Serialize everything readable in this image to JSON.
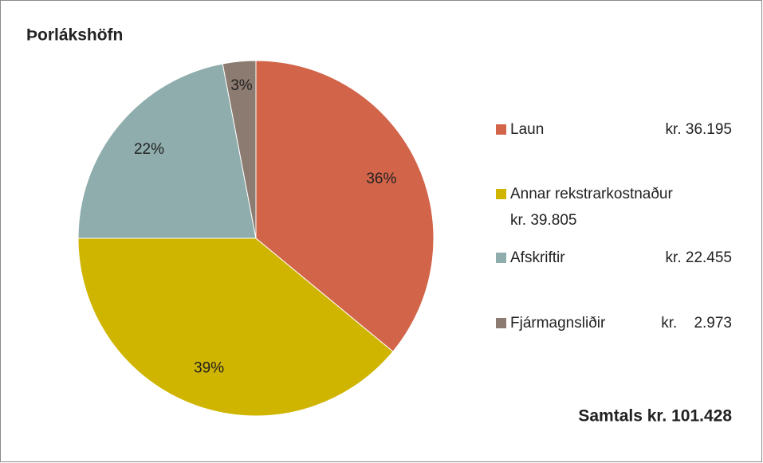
{
  "chart_data": {
    "type": "pie",
    "title": "Þorlákshöfn",
    "categories": [
      "Laun",
      "Annar rekstrarkostnaður",
      "Afskriftir",
      "Fjármagnsliðir"
    ],
    "values": [
      36,
      39,
      22,
      3
    ],
    "value_labels": [
      "36%",
      "39%",
      "22%",
      "3%"
    ],
    "amount_labels": [
      "kr. 36.195",
      "kr. 39.805",
      "kr. 22.455",
      "kr.    2.973"
    ],
    "colors": [
      "#d2644a",
      "#cfb500",
      "#8fadac",
      "#8c7b70"
    ],
    "legend": "right",
    "annotation": "Samtals kr. 101.428"
  }
}
